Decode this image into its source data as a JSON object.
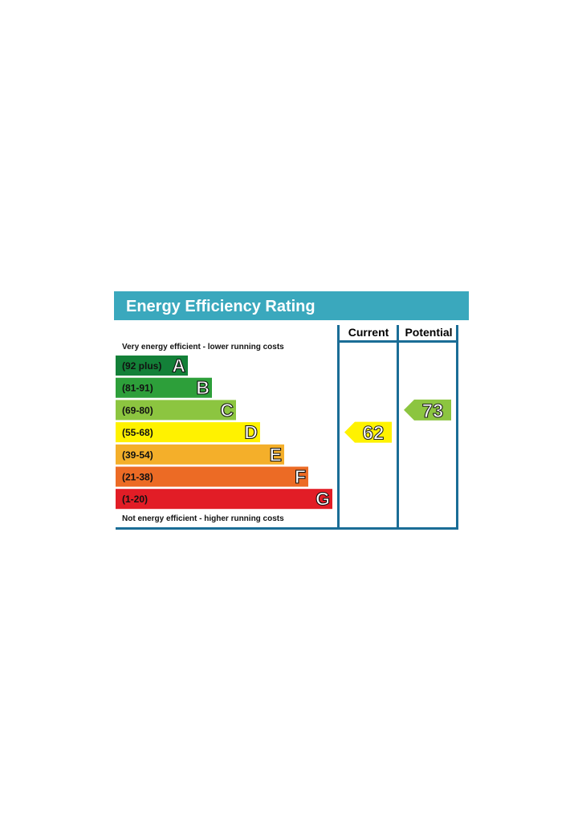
{
  "title": "Energy Efficiency Rating",
  "columns": {
    "current": "Current",
    "potential": "Potential"
  },
  "notes": {
    "top": "Very energy efficient - lower running costs",
    "bottom": "Not energy efficient - higher running costs"
  },
  "colors": {
    "header": "#3aa8bd",
    "frame": "#1a6d96",
    "A": "#138038",
    "B": "#2d9f3a",
    "C": "#8cc540",
    "D": "#fff200",
    "E": "#f4af2a",
    "F": "#ec6b25",
    "G": "#e21d26"
  },
  "chart_data": {
    "type": "bar",
    "title": "Energy Efficiency Rating",
    "bands": [
      {
        "letter": "A",
        "range": "(92 plus)",
        "min": 92,
        "max": null
      },
      {
        "letter": "B",
        "range": "(81-91)",
        "min": 81,
        "max": 91
      },
      {
        "letter": "C",
        "range": "(69-80)",
        "min": 69,
        "max": 80
      },
      {
        "letter": "D",
        "range": "(55-68)",
        "min": 55,
        "max": 68
      },
      {
        "letter": "E",
        "range": "(39-54)",
        "min": 39,
        "max": 54
      },
      {
        "letter": "F",
        "range": "(21-38)",
        "min": 21,
        "max": 38
      },
      {
        "letter": "G",
        "range": "(1-20)",
        "min": 1,
        "max": 20
      }
    ],
    "current": {
      "value": 62,
      "band": "D"
    },
    "potential": {
      "value": 73,
      "band": "C"
    }
  }
}
